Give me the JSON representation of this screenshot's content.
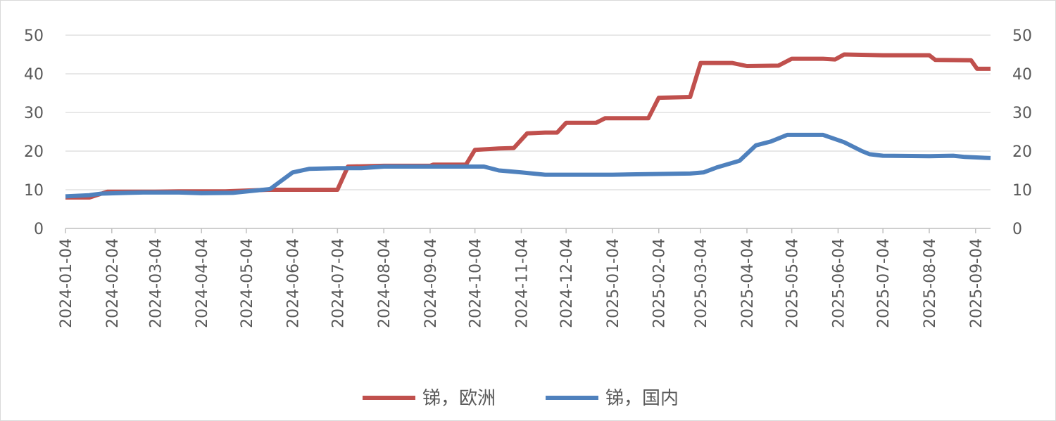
{
  "chart_data": {
    "type": "line",
    "x_tick_labels": [
      "2024-01-04",
      "2024-02-04",
      "2024-03-04",
      "2024-04-04",
      "2024-05-04",
      "2024-06-04",
      "2024-07-04",
      "2024-08-04",
      "2024-09-04",
      "2024-10-04",
      "2024-11-04",
      "2024-12-04",
      "2025-01-04",
      "2025-02-04",
      "2025-03-04",
      "2025-04-04",
      "2025-05-04",
      "2025-06-04",
      "2025-07-04",
      "2025-08-04",
      "2025-09-04"
    ],
    "y_ticks": [
      0,
      10,
      20,
      30,
      40,
      50
    ],
    "ylim": [
      0,
      50
    ],
    "grid": true,
    "legend_position": "bottom",
    "series": [
      {
        "name": "锑，欧洲",
        "color": "#C0504D",
        "points": [
          [
            "2024-01-04",
            8
          ],
          [
            "2024-01-20",
            8
          ],
          [
            "2024-02-01",
            9.5
          ],
          [
            "2024-03-04",
            9.5
          ],
          [
            "2024-03-20",
            9.6
          ],
          [
            "2024-04-20",
            9.6
          ],
          [
            "2024-05-04",
            9.8
          ],
          [
            "2024-05-20",
            10
          ],
          [
            "2024-07-04",
            10
          ],
          [
            "2024-07-11",
            16
          ],
          [
            "2024-08-04",
            16.2
          ],
          [
            "2024-09-04",
            16.2
          ],
          [
            "2024-09-06",
            16.5
          ],
          [
            "2024-09-28",
            16.5
          ],
          [
            "2024-10-04",
            20.3
          ],
          [
            "2024-10-20",
            20.7
          ],
          [
            "2024-10-30",
            20.8
          ],
          [
            "2024-11-08",
            24.6
          ],
          [
            "2024-11-20",
            24.8
          ],
          [
            "2024-11-28",
            24.8
          ],
          [
            "2024-12-04",
            27.3
          ],
          [
            "2024-12-24",
            27.3
          ],
          [
            "2024-12-30",
            28.5
          ],
          [
            "2025-01-15",
            28.5
          ],
          [
            "2025-01-28",
            28.5
          ],
          [
            "2025-02-04",
            33.8
          ],
          [
            "2025-02-25",
            34
          ],
          [
            "2025-03-04",
            42.8
          ],
          [
            "2025-03-25",
            42.8
          ],
          [
            "2025-04-04",
            42
          ],
          [
            "2025-04-25",
            42.1
          ],
          [
            "2025-05-04",
            43.9
          ],
          [
            "2025-05-25",
            43.9
          ],
          [
            "2025-06-02",
            43.7
          ],
          [
            "2025-06-08",
            45
          ],
          [
            "2025-07-04",
            44.8
          ],
          [
            "2025-08-04",
            44.8
          ],
          [
            "2025-08-08",
            43.6
          ],
          [
            "2025-09-01",
            43.5
          ],
          [
            "2025-09-05",
            41.3
          ],
          [
            "2025-09-14",
            41.3
          ]
        ]
      },
      {
        "name": "锑，国内",
        "color": "#4F81BD",
        "points": [
          [
            "2024-01-04",
            8.3
          ],
          [
            "2024-01-20",
            8.6
          ],
          [
            "2024-01-28",
            9
          ],
          [
            "2024-02-15",
            9.2
          ],
          [
            "2024-02-25",
            9.3
          ],
          [
            "2024-03-20",
            9.3
          ],
          [
            "2024-04-04",
            9.1
          ],
          [
            "2024-04-25",
            9.2
          ],
          [
            "2024-05-10",
            9.8
          ],
          [
            "2024-05-20",
            10.2
          ],
          [
            "2024-06-04",
            14.5
          ],
          [
            "2024-06-15",
            15.4
          ],
          [
            "2024-07-04",
            15.6
          ],
          [
            "2024-07-20",
            15.6
          ],
          [
            "2024-08-04",
            16
          ],
          [
            "2024-08-20",
            16
          ],
          [
            "2024-10-10",
            16
          ],
          [
            "2024-10-20",
            15
          ],
          [
            "2024-11-04",
            14.5
          ],
          [
            "2024-11-20",
            13.9
          ],
          [
            "2025-01-04",
            13.9
          ],
          [
            "2025-01-20",
            14
          ],
          [
            "2025-02-25",
            14.2
          ],
          [
            "2025-03-06",
            14.5
          ],
          [
            "2025-03-15",
            15.8
          ],
          [
            "2025-03-30",
            17.5
          ],
          [
            "2025-04-10",
            21.5
          ],
          [
            "2025-04-20",
            22.5
          ],
          [
            "2025-05-01",
            24.2
          ],
          [
            "2025-05-25",
            24.2
          ],
          [
            "2025-06-08",
            22.3
          ],
          [
            "2025-06-20",
            20
          ],
          [
            "2025-06-25",
            19.2
          ],
          [
            "2025-07-04",
            18.8
          ],
          [
            "2025-08-04",
            18.7
          ],
          [
            "2025-08-20",
            18.8
          ],
          [
            "2025-08-28",
            18.5
          ],
          [
            "2025-09-14",
            18.2
          ]
        ]
      }
    ]
  }
}
